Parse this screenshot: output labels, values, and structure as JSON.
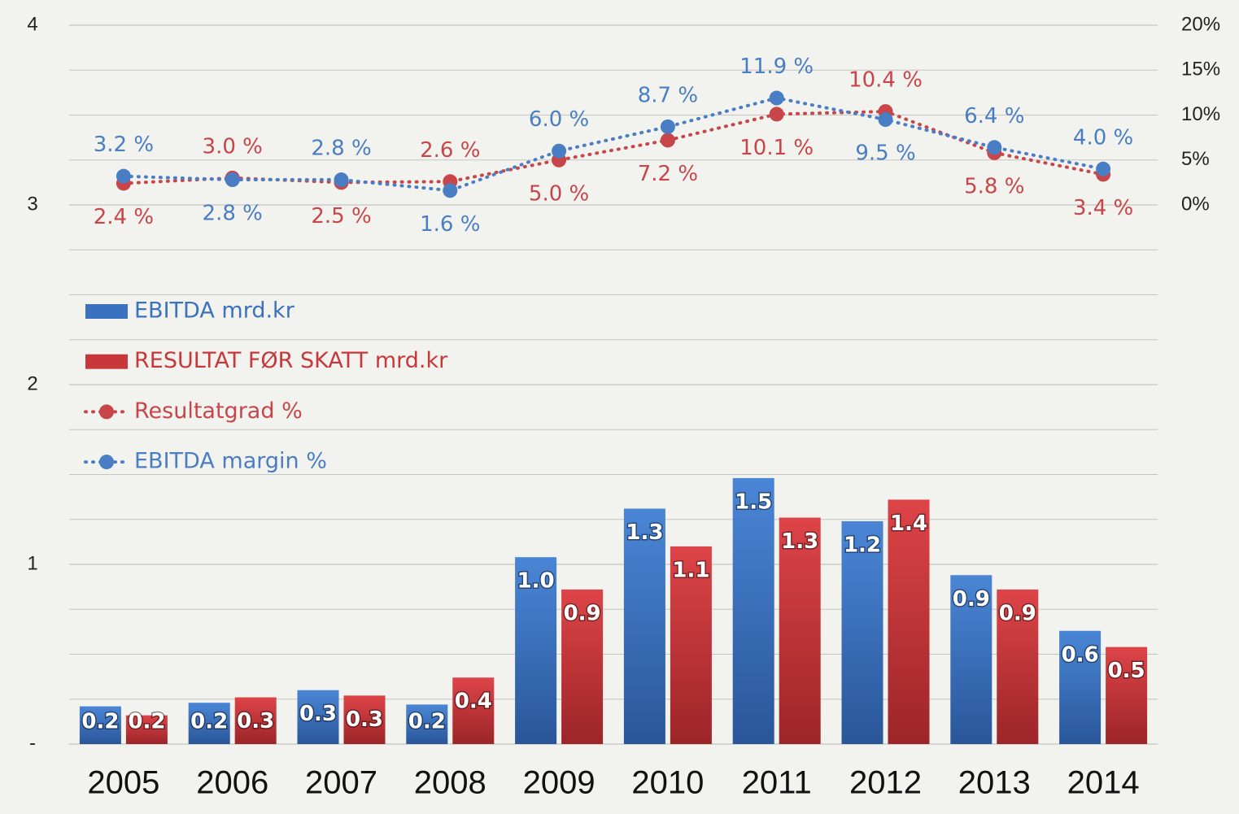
{
  "chart_data": {
    "type": "bar",
    "categories": [
      "2005",
      "2006",
      "2007",
      "2008",
      "2009",
      "2010",
      "2011",
      "2012",
      "2013",
      "2014"
    ],
    "ylim": [
      0,
      4
    ],
    "yticks": [
      {
        "value": 0,
        "label": "-"
      },
      1,
      2,
      3,
      4
    ],
    "y2lim": [
      -60,
      20
    ],
    "y2ticks": [
      {
        "value": 0,
        "label": "0%"
      },
      {
        "value": 5,
        "label": "5%"
      },
      {
        "value": 10,
        "label": "10%"
      },
      {
        "value": 15,
        "label": "15%"
      },
      {
        "value": 20,
        "label": "20%"
      }
    ],
    "grid": true,
    "grid_subdivisions": 4,
    "legend": "upper left",
    "series": [
      {
        "name": "EBITDA mrd.kr",
        "type": "bar",
        "color": "#3b72bf",
        "values": [
          0.21,
          0.23,
          0.3,
          0.22,
          1.04,
          1.31,
          1.48,
          1.24,
          0.94,
          0.63
        ],
        "value_labels": [
          "0.2",
          "0.2",
          "0.3",
          "0.2",
          "1.0",
          "1.3",
          "1.5",
          "1.2",
          "0.9",
          "0.6"
        ]
      },
      {
        "name": "RESULTAT FØR SKATT mrd.kr",
        "type": "bar",
        "color": "#c8373a",
        "values": [
          0.16,
          0.26,
          0.27,
          0.37,
          0.86,
          1.1,
          1.26,
          1.36,
          0.86,
          0.54
        ],
        "value_labels": [
          "0.2",
          "0.3",
          "0.3",
          "0.4",
          "0.9",
          "1.1",
          "1.3",
          "1.4",
          "0.9",
          "0.5"
        ]
      },
      {
        "name": "Resultatgrad %",
        "type": "line",
        "axis": "y2",
        "color": "#c8454a",
        "values": [
          2.4,
          3.0,
          2.5,
          2.6,
          5.0,
          7.2,
          10.1,
          10.4,
          5.8,
          3.4
        ],
        "value_labels": [
          "2.4 %",
          "3.0 %",
          "2.5 %",
          "2.6 %",
          "5.0 %",
          "7.2 %",
          "10.1 %",
          "10.4 %",
          "5.8 %",
          "3.4 %"
        ]
      },
      {
        "name": "EBITDA margin %",
        "type": "line",
        "axis": "y2",
        "color": "#4a7ec4",
        "values": [
          3.2,
          2.8,
          2.8,
          1.6,
          6.0,
          8.7,
          11.9,
          9.5,
          6.4,
          4.0
        ],
        "value_labels": [
          "3.2 %",
          "2.8 %",
          "2.8 %",
          "1.6 %",
          "6.0 %",
          "8.7 %",
          "11.9 %",
          "9.5 %",
          "6.4 %",
          "4.0 %"
        ]
      }
    ]
  }
}
